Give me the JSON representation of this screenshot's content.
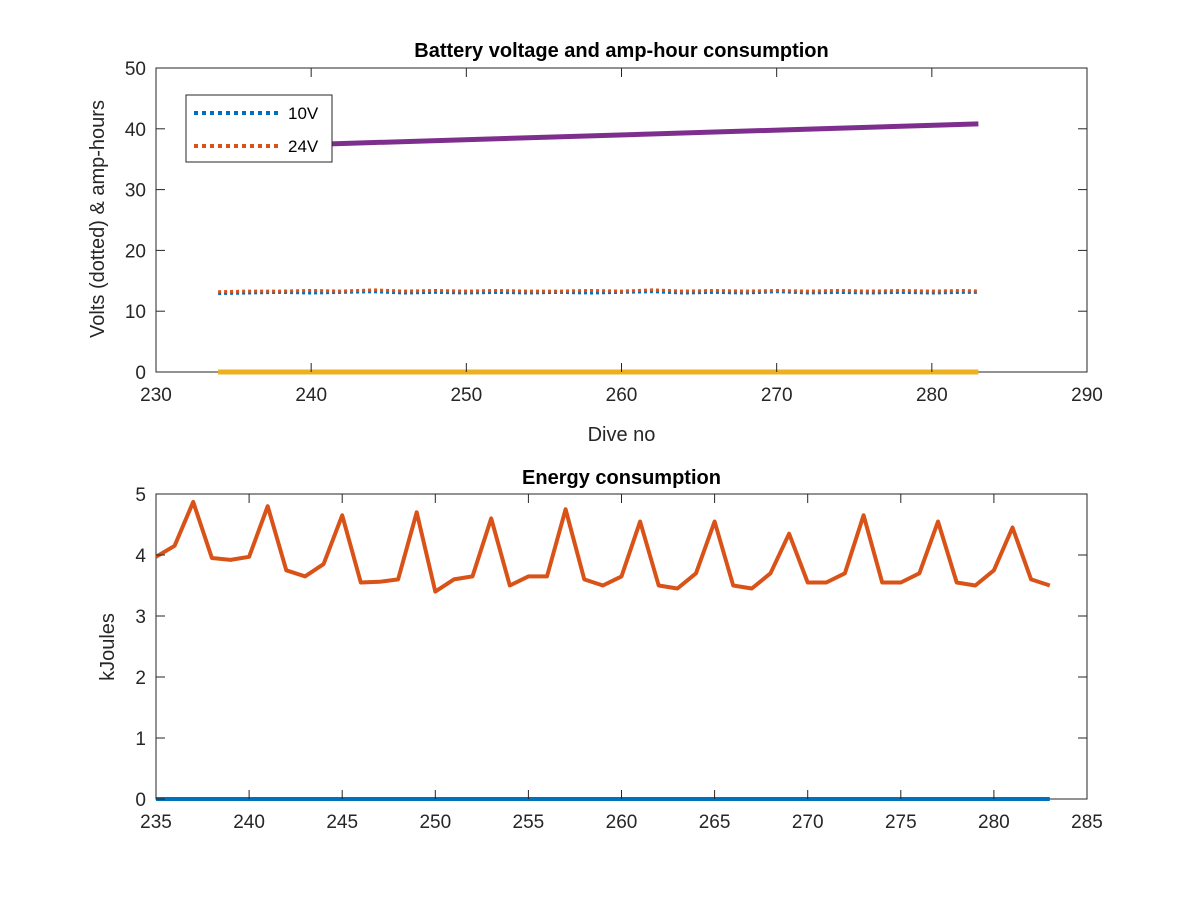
{
  "chart_data": [
    {
      "type": "line",
      "title": "Battery voltage and amp-hour consumption",
      "xlabel": "Dive no",
      "ylabel": "Volts (dotted) & amp-hours",
      "xlim": [
        230,
        290
      ],
      "ylim": [
        0,
        50
      ],
      "xticks": [
        230,
        240,
        250,
        260,
        270,
        280,
        290
      ],
      "yticks": [
        0,
        10,
        20,
        30,
        40,
        50
      ],
      "grid": false,
      "legend_position": "top-left",
      "series": [
        {
          "name": "10V",
          "style": "dotted",
          "color": "#0072BD",
          "x": [
            234,
            236,
            238,
            240,
            242,
            244,
            246,
            248,
            250,
            252,
            254,
            256,
            258,
            260,
            262,
            264,
            266,
            268,
            270,
            272,
            274,
            276,
            278,
            280,
            282,
            283
          ],
          "y": [
            12.9,
            13.0,
            13.1,
            13.0,
            13.1,
            13.2,
            13.0,
            13.1,
            13.0,
            13.1,
            13.0,
            13.1,
            13.0,
            13.1,
            13.2,
            13.0,
            13.1,
            13.0,
            13.2,
            13.0,
            13.1,
            13.0,
            13.1,
            13.0,
            13.1,
            13.1
          ]
        },
        {
          "name": "24V",
          "style": "dotted",
          "color": "#D95319",
          "x": [
            234,
            236,
            238,
            240,
            242,
            244,
            246,
            248,
            250,
            252,
            254,
            256,
            258,
            260,
            262,
            264,
            266,
            268,
            270,
            272,
            274,
            276,
            278,
            280,
            282,
            283
          ],
          "y": [
            13.2,
            13.3,
            13.3,
            13.4,
            13.3,
            13.5,
            13.3,
            13.4,
            13.3,
            13.4,
            13.3,
            13.3,
            13.4,
            13.3,
            13.5,
            13.3,
            13.4,
            13.3,
            13.4,
            13.3,
            13.4,
            13.3,
            13.4,
            13.3,
            13.4,
            13.3
          ]
        },
        {
          "style": "solid",
          "color": "#EDB120",
          "x": [
            234,
            283
          ],
          "y": [
            0,
            0
          ]
        },
        {
          "style": "solid",
          "color": "#7E2F8E",
          "x": [
            241,
            283
          ],
          "y": [
            37.5,
            40.8
          ]
        }
      ]
    },
    {
      "type": "line",
      "title": "Energy consumption",
      "xlabel": "",
      "ylabel": "kJoules",
      "xlim": [
        235,
        285
      ],
      "ylim": [
        0,
        5
      ],
      "xticks": [
        235,
        240,
        245,
        250,
        255,
        260,
        265,
        270,
        275,
        280,
        285
      ],
      "yticks": [
        0,
        1,
        2,
        3,
        4,
        5
      ],
      "grid": false,
      "series": [
        {
          "style": "solid",
          "color": "#0072BD",
          "x": [
            235,
            283
          ],
          "y": [
            0,
            0
          ]
        },
        {
          "style": "solid",
          "color": "#D95319",
          "x": [
            235,
            236,
            237,
            238,
            239,
            240,
            241,
            242,
            243,
            244,
            245,
            246,
            247,
            248,
            249,
            250,
            251,
            252,
            253,
            254,
            255,
            256,
            257,
            258,
            259,
            260,
            261,
            262,
            263,
            264,
            265,
            266,
            267,
            268,
            269,
            270,
            271,
            272,
            273,
            274,
            275,
            276,
            277,
            278,
            279,
            280,
            281,
            282,
            283
          ],
          "y": [
            3.97,
            4.15,
            4.87,
            3.95,
            3.92,
            3.97,
            4.8,
            3.75,
            3.65,
            3.85,
            4.65,
            3.55,
            3.56,
            3.6,
            4.7,
            3.4,
            3.6,
            3.65,
            4.6,
            3.5,
            3.65,
            3.65,
            4.75,
            3.6,
            3.5,
            3.65,
            4.55,
            3.5,
            3.45,
            3.7,
            4.55,
            3.5,
            3.45,
            3.7,
            4.35,
            3.55,
            3.55,
            3.7,
            4.65,
            3.55,
            3.55,
            3.7,
            4.55,
            3.55,
            3.5,
            3.75,
            4.45,
            3.6,
            3.5
          ]
        }
      ]
    }
  ]
}
